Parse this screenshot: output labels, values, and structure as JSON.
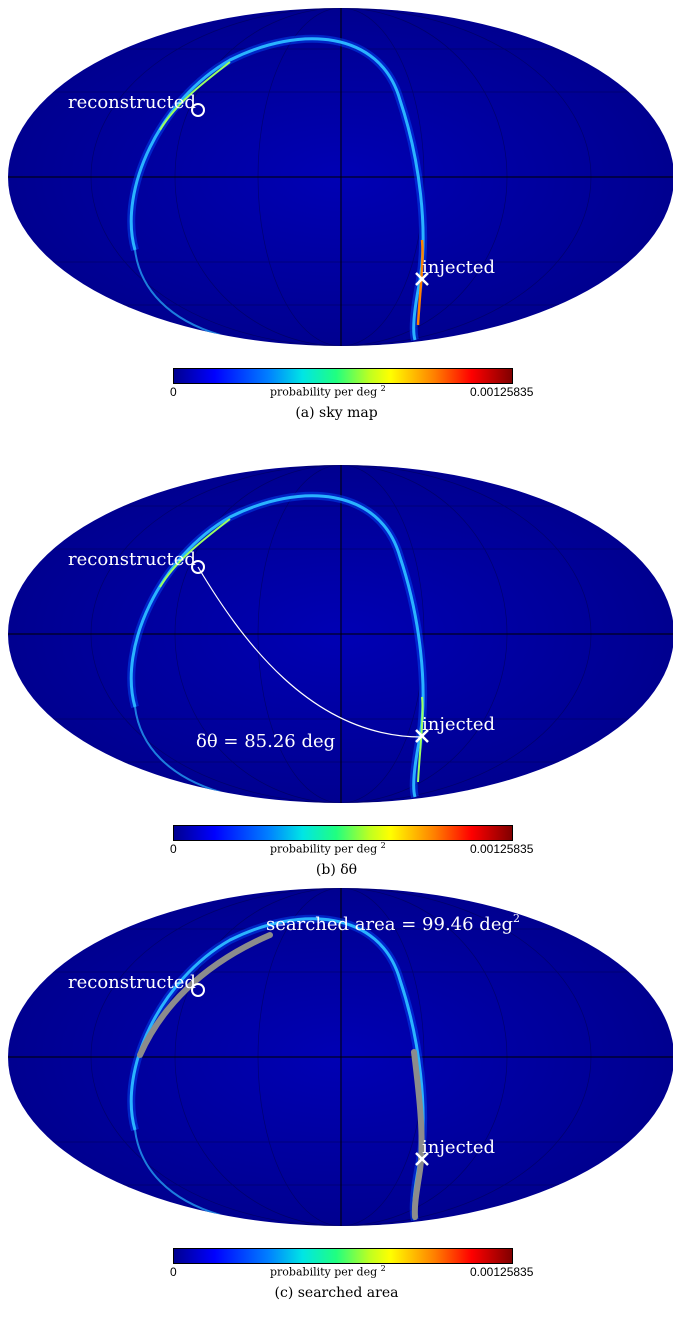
{
  "colorbar": {
    "min_label": "0",
    "max_label": "0.00125835",
    "label_text": "probability per deg",
    "label_sup": "2",
    "colors": [
      "#00008f",
      "#0000ff",
      "#0080ff",
      "#00e5e5",
      "#20ff80",
      "#c0ff20",
      "#ffff00",
      "#ff8000",
      "#ff0000",
      "#800000"
    ]
  },
  "panels": [
    {
      "caption": "(a) sky map",
      "reconstructed_label": "reconstructed",
      "injected_label": "injected",
      "annotation": ""
    },
    {
      "caption": "(b) δθ",
      "reconstructed_label": "reconstructed",
      "injected_label": "injected",
      "annotation": "δθ = 85.26 deg"
    },
    {
      "caption": "(c) searched area",
      "reconstructed_label": "reconstructed",
      "injected_label": "injected",
      "annotation_text": "searched area = 99.46 deg",
      "annotation_sup": "2"
    }
  ],
  "colors": {
    "background_field": "#00009c",
    "ring": "#2ab3ff",
    "ring_hot": "#9cff60",
    "searched": "#8c8c8c",
    "marker": "#ffffff"
  }
}
